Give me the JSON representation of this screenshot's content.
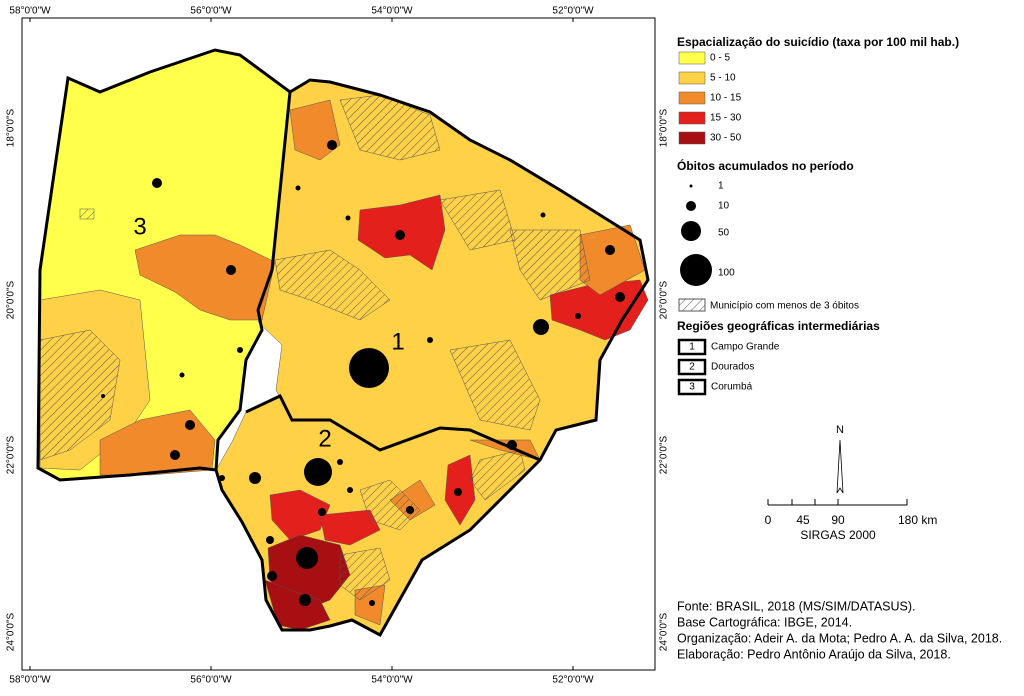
{
  "map": {
    "coordinates": {
      "top": [
        "58°0'0\"W",
        "56°0'0\"W",
        "54°0'0\"W",
        "52°0'0\"W"
      ],
      "bottom": [
        "58°0'0\"W",
        "56°0'0\"W",
        "54°0'0\"W",
        "52°0'0\"W"
      ],
      "left": [
        "18°0'0\"S",
        "20°0'0\"S",
        "22°0'0\"S",
        "24°0'0\"S"
      ],
      "right": [
        "18°0'0\"S",
        "20°0'0\"S",
        "22°0'0\"S",
        "24°0'0\"S"
      ]
    },
    "region_labels": [
      "1",
      "2",
      "3"
    ]
  },
  "legend": {
    "title": "Espacialização do suicídio (taxa por 100 mil hab.)",
    "classes": [
      {
        "label": "0 - 5",
        "color": "#ffff4c"
      },
      {
        "label": "5 - 10",
        "color": "#ffd147"
      },
      {
        "label": "10 - 15",
        "color": "#f08a2a"
      },
      {
        "label": "15 - 30",
        "color": "#e3201b"
      },
      {
        "label": "30 - 50",
        "color": "#a80f12"
      }
    ],
    "deaths_title": "Óbitos acumulados no período",
    "deaths": [
      "1",
      "10",
      "50",
      "100"
    ],
    "hatch": "Município com menos de 3 óbitos",
    "regions_title": "Regiões geográficas intermediárias",
    "regions": [
      {
        "number": "1",
        "name": "Campo Grande"
      },
      {
        "number": "2",
        "name": "Dourados"
      },
      {
        "number": "3",
        "name": "Corumbá"
      }
    ]
  },
  "scale": {
    "north": "N",
    "ticks": [
      "0",
      "45",
      "90",
      "180 km"
    ],
    "crs": "SIRGAS 2000"
  },
  "credits": [
    "Fonte: BRASIL, 2018 (MS/SIM/DATASUS).",
    "Base Cartográfica: IBGE, 2014.",
    "Organização: Adeir A. da Mota; Pedro A. A. da Silva, 2018.",
    "Elaboração: Pedro Antônio Araújo da Silva, 2018."
  ]
}
